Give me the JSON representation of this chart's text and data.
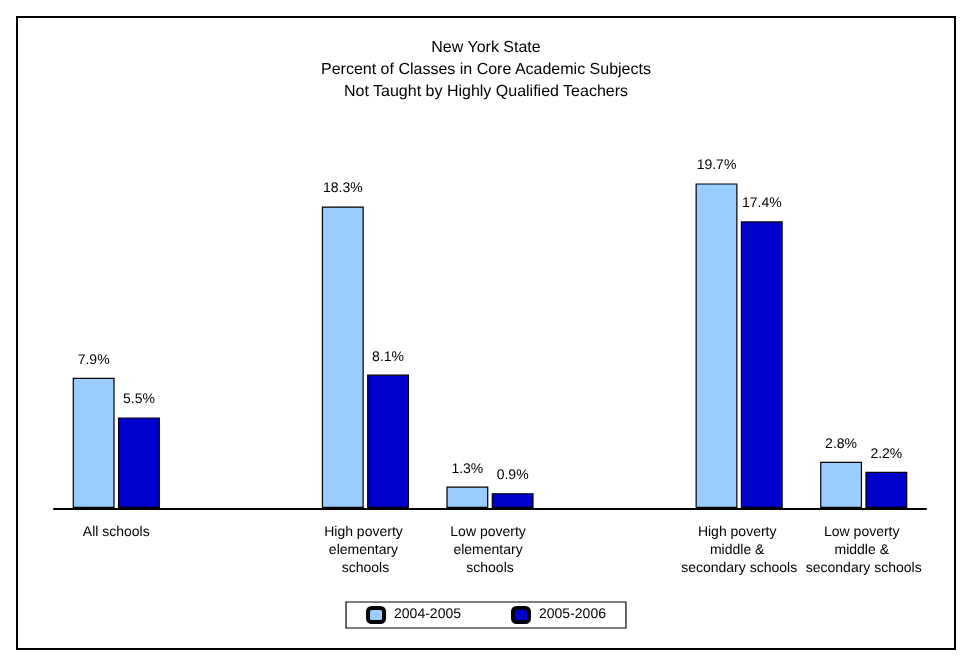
{
  "chart_data": {
    "type": "bar",
    "title": "New York State\nPercent of Classes in Core Academic Subjects\nNot Taught by Highly Qualified Teachers",
    "categories": [
      "All schools",
      null,
      "High poverty elementary schools",
      "Low poverty elementary schools",
      null,
      "High poverty middle & secondary schools",
      "Low poverty middle & secondary schools"
    ],
    "series": [
      {
        "name": "2004-2005",
        "color": "#99ccff",
        "values": [
          7.9,
          null,
          18.3,
          1.3,
          null,
          19.7,
          2.8
        ],
        "value_labels": [
          "7.9%",
          null,
          "18.3%",
          "1.3%",
          null,
          "19.7%",
          "2.8%"
        ]
      },
      {
        "name": "2005-2006",
        "color": "#0000cc",
        "values": [
          5.5,
          null,
          8.1,
          0.9,
          null,
          17.4,
          2.2
        ],
        "value_labels": [
          "5.5%",
          null,
          "8.1%",
          "0.9%",
          null,
          "17.4%",
          "2.2%"
        ]
      }
    ],
    "grid": false,
    "legend": "bottom"
  }
}
